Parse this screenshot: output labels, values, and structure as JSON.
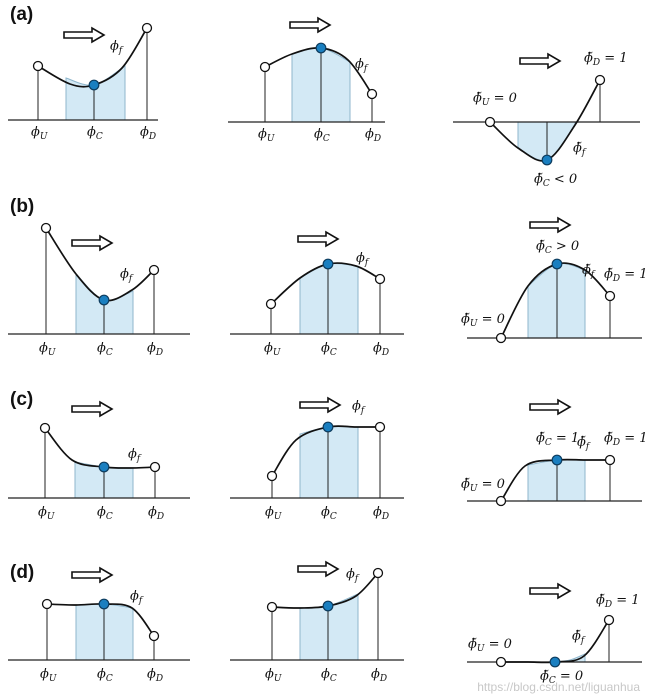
{
  "colors": {
    "fill": "#d3e9f5",
    "fill_stroke": "#8fb6cc",
    "point_c": "#1a7fc0",
    "curve": "#111111",
    "line": "#222222"
  },
  "rows": [
    {
      "label": "(a)",
      "panels": [
        {
          "labels": [
            "ϕ_U",
            "ϕ_C",
            "ϕ_D",
            "ϕ_f"
          ]
        },
        {
          "labels": [
            "ϕ_U",
            "ϕ_C",
            "ϕ_D",
            "ϕ_f"
          ]
        },
        {
          "labels": [
            "ϕ̃_U = 0",
            "ϕ̃_C < 0",
            "ϕ̃_D = 1",
            "ϕ̃_f"
          ]
        }
      ]
    },
    {
      "label": "(b)",
      "panels": [
        {
          "labels": [
            "ϕ_U",
            "ϕ_C",
            "ϕ_D",
            "ϕ_f"
          ]
        },
        {
          "labels": [
            "ϕ_U",
            "ϕ_C",
            "ϕ_D",
            "ϕ_f"
          ]
        },
        {
          "labels": [
            "ϕ̃_U = 0",
            "ϕ̃_C > 0",
            "ϕ̃_D = 1",
            "ϕ̃_f"
          ]
        }
      ]
    },
    {
      "label": "(c)",
      "panels": [
        {
          "labels": [
            "ϕ_U",
            "ϕ_C",
            "ϕ_D",
            "ϕ_f"
          ]
        },
        {
          "labels": [
            "ϕ_U",
            "ϕ_C",
            "ϕ_D",
            "ϕ_f"
          ]
        },
        {
          "labels": [
            "ϕ̃_U = 0",
            "ϕ̃_C = 1",
            "ϕ̃_D = 1",
            "ϕ̃_f"
          ]
        }
      ]
    },
    {
      "label": "(d)",
      "panels": [
        {
          "labels": [
            "ϕ_U",
            "ϕ_C",
            "ϕ_D",
            "ϕ_f"
          ]
        },
        {
          "labels": [
            "ϕ_U",
            "ϕ_C",
            "ϕ_D",
            "ϕ_f"
          ]
        },
        {
          "labels": [
            "ϕ̃_U = 0",
            "ϕ̃_C = 0",
            "ϕ̃_D = 1",
            "ϕ̃_f"
          ]
        }
      ]
    }
  ],
  "watermark": "https://blog.csdn.net/liguanhua"
}
